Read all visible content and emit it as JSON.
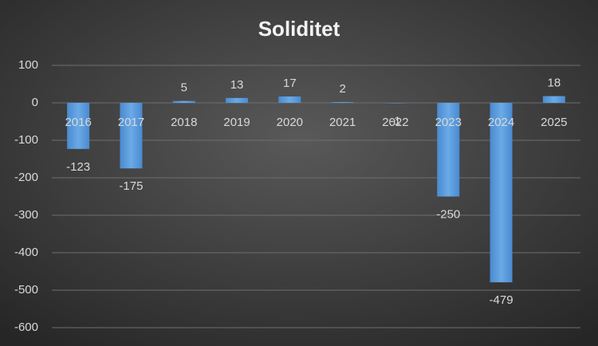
{
  "chart_data": {
    "type": "bar",
    "title": "Soliditet",
    "categories": [
      "2016",
      "2017",
      "2018",
      "2019",
      "2020",
      "2021",
      "2022",
      "2023",
      "2024",
      "2025"
    ],
    "values": [
      -123,
      -175,
      5,
      13,
      17,
      2,
      -1,
      -250,
      -479,
      18
    ],
    "color": "#5b9bd5",
    "ylim": [
      -600,
      100
    ],
    "yticks": [
      100,
      0,
      -100,
      -200,
      -300,
      -400,
      -500,
      -600
    ],
    "grid": true
  }
}
